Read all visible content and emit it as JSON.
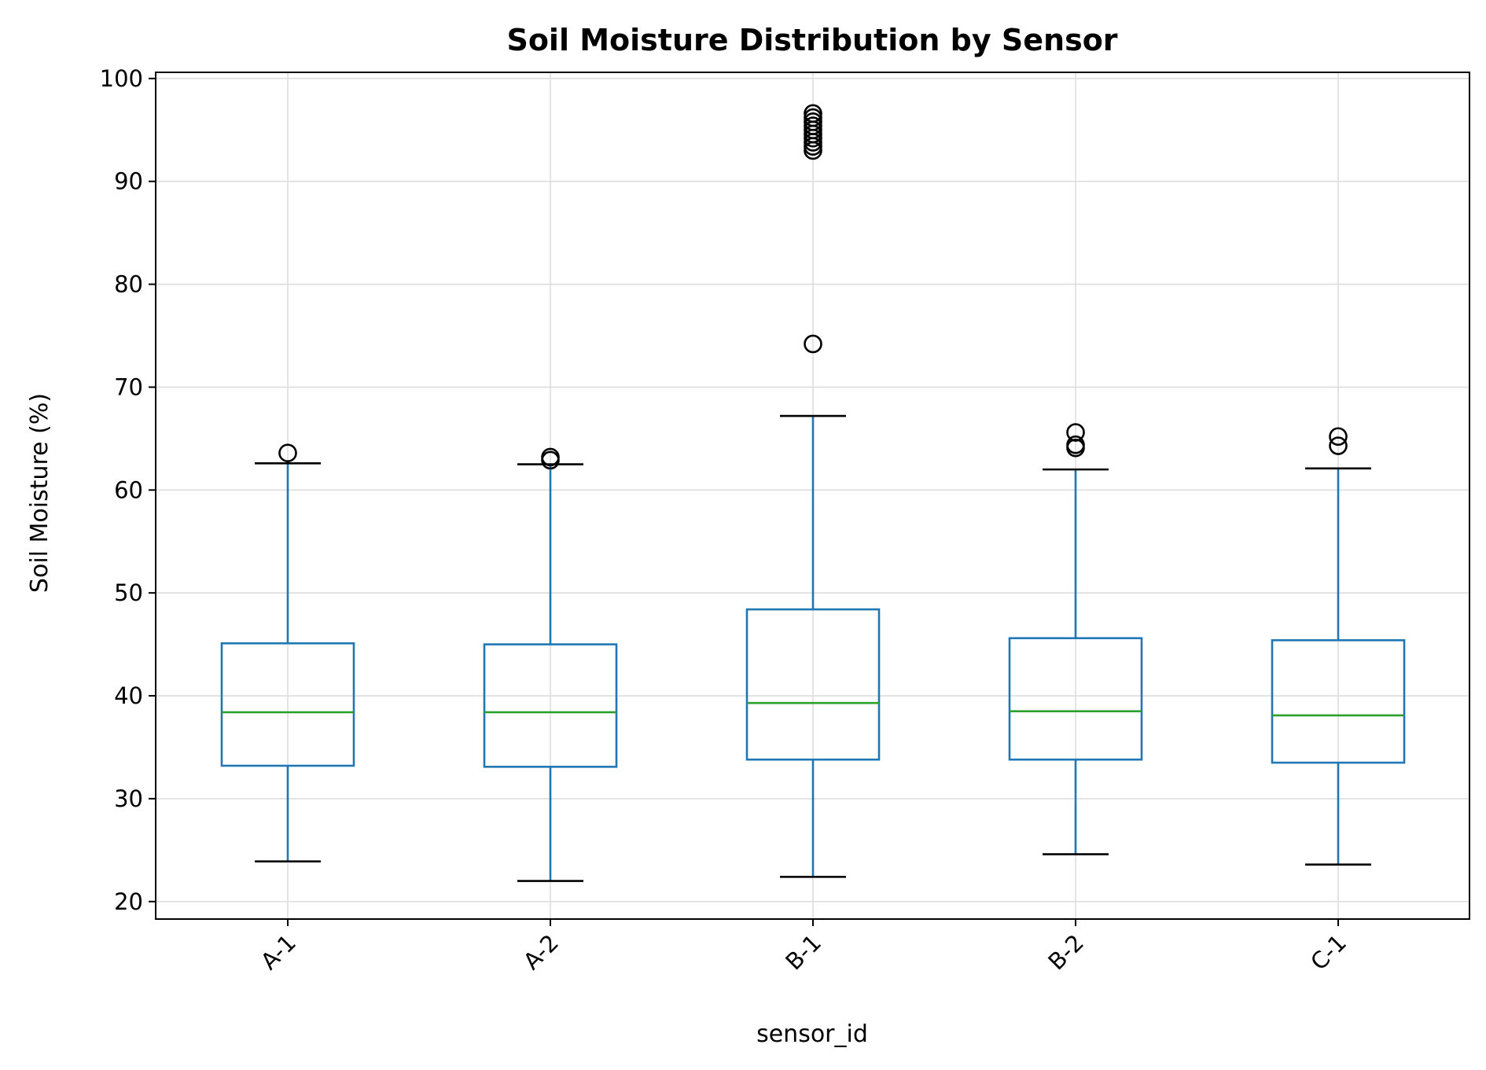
{
  "chart_data": {
    "type": "box",
    "title": "Soil Moisture Distribution by Sensor",
    "xlabel": "sensor_id",
    "ylabel": "Soil Moisture (%)",
    "ylim": [
      18.3,
      100.6
    ],
    "yticks": [
      20,
      30,
      40,
      50,
      60,
      70,
      80,
      90,
      100
    ],
    "grid": true,
    "categories": [
      "A-1",
      "A-2",
      "B-1",
      "B-2",
      "C-1"
    ],
    "boxes": [
      {
        "label": "A-1",
        "whisker_low": 23.9,
        "q1": 33.2,
        "median": 38.4,
        "q3": 45.1,
        "whisker_high": 62.6,
        "outliers": [
          63.6
        ]
      },
      {
        "label": "A-2",
        "whisker_low": 22.0,
        "q1": 33.1,
        "median": 38.4,
        "q3": 45.0,
        "whisker_high": 62.5,
        "outliers": [
          62.9,
          63.2
        ]
      },
      {
        "label": "B-1",
        "whisker_low": 22.4,
        "q1": 33.8,
        "median": 39.3,
        "q3": 48.4,
        "whisker_high": 67.2,
        "outliers": [
          74.2,
          93.0,
          93.4,
          93.8,
          94.2,
          94.6,
          95.0,
          95.4,
          95.8,
          96.2,
          96.6
        ]
      },
      {
        "label": "B-2",
        "whisker_low": 24.6,
        "q1": 33.8,
        "median": 38.5,
        "q3": 45.6,
        "whisker_high": 62.0,
        "outliers": [
          64.1,
          64.4,
          65.6
        ]
      },
      {
        "label": "C-1",
        "whisker_low": 23.6,
        "q1": 33.5,
        "median": 38.1,
        "q3": 45.4,
        "whisker_high": 62.1,
        "outliers": [
          64.3,
          65.2
        ]
      }
    ],
    "colors": {
      "box": "#1f77b4",
      "median": "#2ca02c",
      "whisker_cap": "#000000",
      "outlier": "#000000",
      "grid": "#dddddd"
    }
  }
}
